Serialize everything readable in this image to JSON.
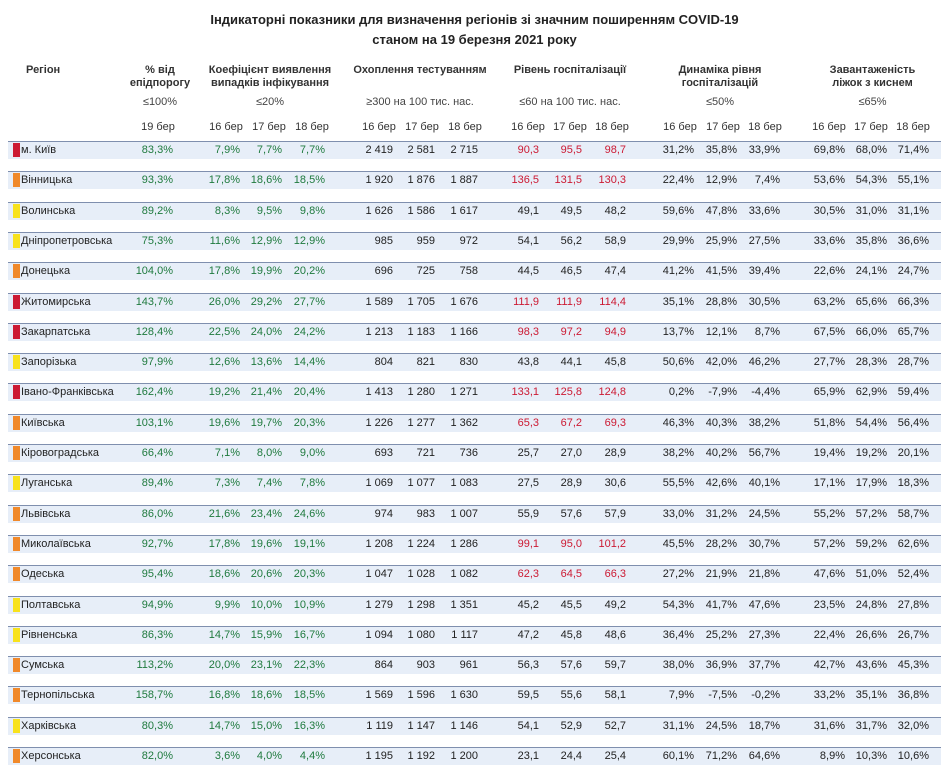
{
  "title_line1": "Індикаторні показники для визначення регіонів зі значним поширенням COVID-19",
  "title_line2": "станом на 19 березня 2021 року",
  "headers": {
    "region": "Регіон",
    "threshold": {
      "name1": "% від",
      "name2": "епідпорогу",
      "limit": "≤100%"
    },
    "detection": {
      "name1": "Коефіцієнт виявлення",
      "name2": "випадків інфікування",
      "limit": "≤20%"
    },
    "testing": {
      "name1": "Охоплення тестуванням",
      "name2": "",
      "limit": "≥300 на 100 тис. нас."
    },
    "hosp": {
      "name1": "Рівень госпіталізації",
      "name2": "",
      "limit": "≤60 на 100 тис. нас."
    },
    "dynamics": {
      "name1": "Динаміка рівня",
      "name2": "госпіталізацій",
      "limit": "≤50%"
    },
    "oxygen": {
      "name1": "Завантаженість",
      "name2": "ліжок з киснем",
      "limit": "≤65%"
    }
  },
  "dates": {
    "threshold": [
      "19 бер"
    ],
    "detection": [
      "16 бер",
      "17 бер",
      "18 бер"
    ],
    "testing": [
      "16 бер",
      "17 бер",
      "18 бер"
    ],
    "hosp": [
      "16 бер",
      "17 бер",
      "18 бер"
    ],
    "dynamics": [
      "16 бер",
      "17 бер",
      "18 бер"
    ],
    "oxygen": [
      "16 бер",
      "17 бер",
      "18 бер"
    ]
  },
  "colors": {
    "red": "#cc1a33",
    "orange": "#f0892a",
    "yellow": "#f8e21d",
    "green_text": "#1f7a3e",
    "red_text": "#cc1a33"
  },
  "rows": [
    {
      "name": "м. Київ",
      "zone": "red",
      "threshold": "83,3%",
      "detection": [
        "7,9%",
        "7,7%",
        "7,7%"
      ],
      "testing": [
        "2 419",
        "2 581",
        "2 715"
      ],
      "hosp": [
        "90,3",
        "95,5",
        "98,7"
      ],
      "hosp_red": true,
      "dynamics": [
        "31,2%",
        "35,8%",
        "33,9%"
      ],
      "oxygen": [
        "69,8%",
        "68,0%",
        "71,4%"
      ]
    },
    {
      "name": "Вінницька",
      "zone": "orange",
      "threshold": "93,3%",
      "detection": [
        "17,8%",
        "18,6%",
        "18,5%"
      ],
      "testing": [
        "1 920",
        "1 876",
        "1 887"
      ],
      "hosp": [
        "136,5",
        "131,5",
        "130,3"
      ],
      "hosp_red": true,
      "dynamics": [
        "22,4%",
        "12,9%",
        "7,4%"
      ],
      "oxygen": [
        "53,6%",
        "54,3%",
        "55,1%"
      ]
    },
    {
      "name": "Волинська",
      "zone": "yellow",
      "threshold": "89,2%",
      "detection": [
        "8,3%",
        "9,5%",
        "9,8%"
      ],
      "testing": [
        "1 626",
        "1 586",
        "1 617"
      ],
      "hosp": [
        "49,1",
        "49,5",
        "48,2"
      ],
      "hosp_red": false,
      "dynamics": [
        "59,6%",
        "47,8%",
        "33,6%"
      ],
      "oxygen": [
        "30,5%",
        "31,0%",
        "31,1%"
      ]
    },
    {
      "name": "Дніпропетровська",
      "zone": "yellow",
      "threshold": "75,3%",
      "detection": [
        "11,6%",
        "12,9%",
        "12,9%"
      ],
      "testing": [
        "985",
        "959",
        "972"
      ],
      "hosp": [
        "54,1",
        "56,2",
        "58,9"
      ],
      "hosp_red": false,
      "dynamics": [
        "29,9%",
        "25,9%",
        "27,5%"
      ],
      "oxygen": [
        "33,6%",
        "35,8%",
        "36,6%"
      ]
    },
    {
      "name": "Донецька",
      "zone": "orange",
      "threshold": "104,0%",
      "detection": [
        "17,8%",
        "19,9%",
        "20,2%"
      ],
      "testing": [
        "696",
        "725",
        "758"
      ],
      "hosp": [
        "44,5",
        "46,5",
        "47,4"
      ],
      "hosp_red": false,
      "dynamics": [
        "41,2%",
        "41,5%",
        "39,4%"
      ],
      "oxygen": [
        "22,6%",
        "24,1%",
        "24,7%"
      ]
    },
    {
      "name": "Житомирська",
      "zone": "red",
      "threshold": "143,7%",
      "detection": [
        "26,0%",
        "29,2%",
        "27,7%"
      ],
      "testing": [
        "1 589",
        "1 705",
        "1 676"
      ],
      "hosp": [
        "111,9",
        "111,9",
        "114,4"
      ],
      "hosp_red": true,
      "dynamics": [
        "35,1%",
        "28,8%",
        "30,5%"
      ],
      "oxygen": [
        "63,2%",
        "65,6%",
        "66,3%"
      ]
    },
    {
      "name": "Закарпатська",
      "zone": "red",
      "threshold": "128,4%",
      "detection": [
        "22,5%",
        "24,0%",
        "24,2%"
      ],
      "testing": [
        "1 213",
        "1 183",
        "1 166"
      ],
      "hosp": [
        "98,3",
        "97,2",
        "94,9"
      ],
      "hosp_red": true,
      "dynamics": [
        "13,7%",
        "12,1%",
        "8,7%"
      ],
      "oxygen": [
        "67,5%",
        "66,0%",
        "65,7%"
      ]
    },
    {
      "name": "Запорізька",
      "zone": "yellow",
      "threshold": "97,9%",
      "detection": [
        "12,6%",
        "13,6%",
        "14,4%"
      ],
      "testing": [
        "804",
        "821",
        "830"
      ],
      "hosp": [
        "43,8",
        "44,1",
        "45,8"
      ],
      "hosp_red": false,
      "dynamics": [
        "50,6%",
        "42,0%",
        "46,2%"
      ],
      "oxygen": [
        "27,7%",
        "28,3%",
        "28,7%"
      ]
    },
    {
      "name": "Івано-Франківська",
      "zone": "red",
      "threshold": "162,4%",
      "detection": [
        "19,2%",
        "21,4%",
        "20,4%"
      ],
      "testing": [
        "1 413",
        "1 280",
        "1 271"
      ],
      "hosp": [
        "133,1",
        "125,8",
        "124,8"
      ],
      "hosp_red": true,
      "dynamics": [
        "0,2%",
        "-7,9%",
        "-4,4%"
      ],
      "oxygen": [
        "65,9%",
        "62,9%",
        "59,4%"
      ]
    },
    {
      "name": "Київська",
      "zone": "orange",
      "threshold": "103,1%",
      "detection": [
        "19,6%",
        "19,7%",
        "20,3%"
      ],
      "testing": [
        "1 226",
        "1 277",
        "1 362"
      ],
      "hosp": [
        "65,3",
        "67,2",
        "69,3"
      ],
      "hosp_red": true,
      "dynamics": [
        "46,3%",
        "40,3%",
        "38,2%"
      ],
      "oxygen": [
        "51,8%",
        "54,4%",
        "56,4%"
      ]
    },
    {
      "name": "Кіровоградська",
      "zone": "orange",
      "threshold": "66,4%",
      "detection": [
        "7,1%",
        "8,0%",
        "9,0%"
      ],
      "testing": [
        "693",
        "721",
        "736"
      ],
      "hosp": [
        "25,7",
        "27,0",
        "28,9"
      ],
      "hosp_red": false,
      "dynamics": [
        "38,2%",
        "40,2%",
        "56,7%"
      ],
      "oxygen": [
        "19,4%",
        "19,2%",
        "20,1%"
      ]
    },
    {
      "name": "Луганська",
      "zone": "yellow",
      "threshold": "89,4%",
      "detection": [
        "7,3%",
        "7,4%",
        "7,8%"
      ],
      "testing": [
        "1 069",
        "1 077",
        "1 083"
      ],
      "hosp": [
        "27,5",
        "28,9",
        "30,6"
      ],
      "hosp_red": false,
      "dynamics": [
        "55,5%",
        "42,6%",
        "40,1%"
      ],
      "oxygen": [
        "17,1%",
        "17,9%",
        "18,3%"
      ]
    },
    {
      "name": "Львівська",
      "zone": "orange",
      "threshold": "86,0%",
      "detection": [
        "21,6%",
        "23,4%",
        "24,6%"
      ],
      "testing": [
        "974",
        "983",
        "1 007"
      ],
      "hosp": [
        "55,9",
        "57,6",
        "57,9"
      ],
      "hosp_red": false,
      "dynamics": [
        "33,0%",
        "31,2%",
        "24,5%"
      ],
      "oxygen": [
        "55,2%",
        "57,2%",
        "58,7%"
      ]
    },
    {
      "name": "Миколаївська",
      "zone": "orange",
      "threshold": "92,7%",
      "detection": [
        "17,8%",
        "19,6%",
        "19,1%"
      ],
      "testing": [
        "1 208",
        "1 224",
        "1 286"
      ],
      "hosp": [
        "99,1",
        "95,0",
        "101,2"
      ],
      "hosp_red": true,
      "dynamics": [
        "45,5%",
        "28,2%",
        "30,7%"
      ],
      "oxygen": [
        "57,2%",
        "59,2%",
        "62,6%"
      ]
    },
    {
      "name": "Одеська",
      "zone": "orange",
      "threshold": "95,4%",
      "detection": [
        "18,6%",
        "20,6%",
        "20,3%"
      ],
      "testing": [
        "1 047",
        "1 028",
        "1 082"
      ],
      "hosp": [
        "62,3",
        "64,5",
        "66,3"
      ],
      "hosp_red": true,
      "dynamics": [
        "27,2%",
        "21,9%",
        "21,8%"
      ],
      "oxygen": [
        "47,6%",
        "51,0%",
        "52,4%"
      ]
    },
    {
      "name": "Полтавська",
      "zone": "yellow",
      "threshold": "94,9%",
      "detection": [
        "9,9%",
        "10,0%",
        "10,9%"
      ],
      "testing": [
        "1 279",
        "1 298",
        "1 351"
      ],
      "hosp": [
        "45,2",
        "45,5",
        "49,2"
      ],
      "hosp_red": false,
      "dynamics": [
        "54,3%",
        "41,7%",
        "47,6%"
      ],
      "oxygen": [
        "23,5%",
        "24,8%",
        "27,8%"
      ]
    },
    {
      "name": "Рівненська",
      "zone": "yellow",
      "threshold": "86,3%",
      "detection": [
        "14,7%",
        "15,9%",
        "16,7%"
      ],
      "testing": [
        "1 094",
        "1 080",
        "1 117"
      ],
      "hosp": [
        "47,2",
        "45,8",
        "48,6"
      ],
      "hosp_red": false,
      "dynamics": [
        "36,4%",
        "25,2%",
        "27,3%"
      ],
      "oxygen": [
        "22,4%",
        "26,6%",
        "26,7%"
      ]
    },
    {
      "name": "Сумська",
      "zone": "orange",
      "threshold": "113,2%",
      "detection": [
        "20,0%",
        "23,1%",
        "22,3%"
      ],
      "testing": [
        "864",
        "903",
        "961"
      ],
      "hosp": [
        "56,3",
        "57,6",
        "59,7"
      ],
      "hosp_red": false,
      "dynamics": [
        "38,0%",
        "36,9%",
        "37,7%"
      ],
      "oxygen": [
        "42,7%",
        "43,6%",
        "45,3%"
      ]
    },
    {
      "name": "Тернопільська",
      "zone": "orange",
      "threshold": "158,7%",
      "detection": [
        "16,8%",
        "18,6%",
        "18,5%"
      ],
      "testing": [
        "1 569",
        "1 596",
        "1 630"
      ],
      "hosp": [
        "59,5",
        "55,6",
        "58,1"
      ],
      "hosp_red": false,
      "dynamics": [
        "7,9%",
        "-7,5%",
        "-0,2%"
      ],
      "oxygen": [
        "33,2%",
        "35,1%",
        "36,8%"
      ]
    },
    {
      "name": "Харківська",
      "zone": "yellow",
      "threshold": "80,3%",
      "detection": [
        "14,7%",
        "15,0%",
        "16,3%"
      ],
      "testing": [
        "1 119",
        "1 147",
        "1 146"
      ],
      "hosp": [
        "54,1",
        "52,9",
        "52,7"
      ],
      "hosp_red": false,
      "dynamics": [
        "31,1%",
        "24,5%",
        "18,7%"
      ],
      "oxygen": [
        "31,6%",
        "31,7%",
        "32,0%"
      ]
    },
    {
      "name": "Херсонська",
      "zone": "orange",
      "threshold": "82,0%",
      "detection": [
        "3,6%",
        "4,0%",
        "4,4%"
      ],
      "testing": [
        "1 195",
        "1 192",
        "1 200"
      ],
      "hosp": [
        "23,1",
        "24,4",
        "25,4"
      ],
      "hosp_red": false,
      "dynamics": [
        "60,1%",
        "71,2%",
        "64,6%"
      ],
      "oxygen": [
        "8,9%",
        "10,3%",
        "10,6%"
      ]
    }
  ]
}
